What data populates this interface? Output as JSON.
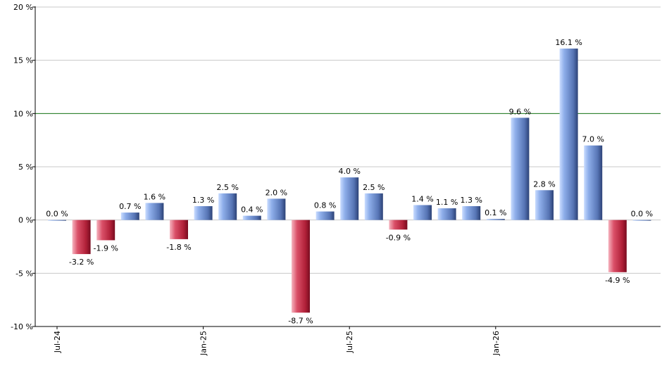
{
  "chart_data": {
    "type": "bar",
    "title": "",
    "xlabel": "",
    "ylabel": "",
    "ylim": [
      -10,
      20
    ],
    "y_ticks": [
      "20 %",
      "15 %",
      "10 %",
      "5 %",
      "0 %",
      "-5 %",
      "-10 %"
    ],
    "y_tick_values": [
      20,
      15,
      10,
      5,
      0,
      -5,
      -10
    ],
    "x_tick_labels": [
      {
        "label": "Jul-24",
        "index": 0
      },
      {
        "label": "Jan-25",
        "index": 6
      },
      {
        "label": "Jul-25",
        "index": 12
      },
      {
        "label": "Jan-26",
        "index": 18
      }
    ],
    "values": [
      0.0,
      -3.2,
      -1.9,
      0.7,
      1.6,
      -1.8,
      1.3,
      2.5,
      0.4,
      2.0,
      -8.7,
      0.8,
      4.0,
      2.5,
      -0.9,
      1.4,
      1.1,
      1.3,
      0.1,
      9.6,
      2.8,
      16.1,
      7.0,
      -4.9,
      0.0
    ],
    "value_labels": [
      "0.0 %",
      "-3.2 %",
      "-1.9 %",
      "0.7 %",
      "1.6 %",
      "-1.8 %",
      "1.3 %",
      "2.5 %",
      "0.4 %",
      "2.0 %",
      "-8.7 %",
      "0.8 %",
      "4.0 %",
      "2.5 %",
      "-0.9 %",
      "1.4 %",
      "1.1 %",
      "1.3 %",
      "0.1 %",
      "9.6 %",
      "2.8 %",
      "16.1 %",
      "7.0 %",
      "-4.9 %",
      "0.0 %"
    ],
    "reference_line": 10,
    "grid": true,
    "legend": "none",
    "colors": {
      "positive": "#7f9fe0",
      "positive_dark": "#2f4880",
      "negative": "#c8304a",
      "negative_light": "#f4a0ae",
      "reference_line": "#1a7a1a",
      "grid": "#c8c8c8"
    }
  }
}
